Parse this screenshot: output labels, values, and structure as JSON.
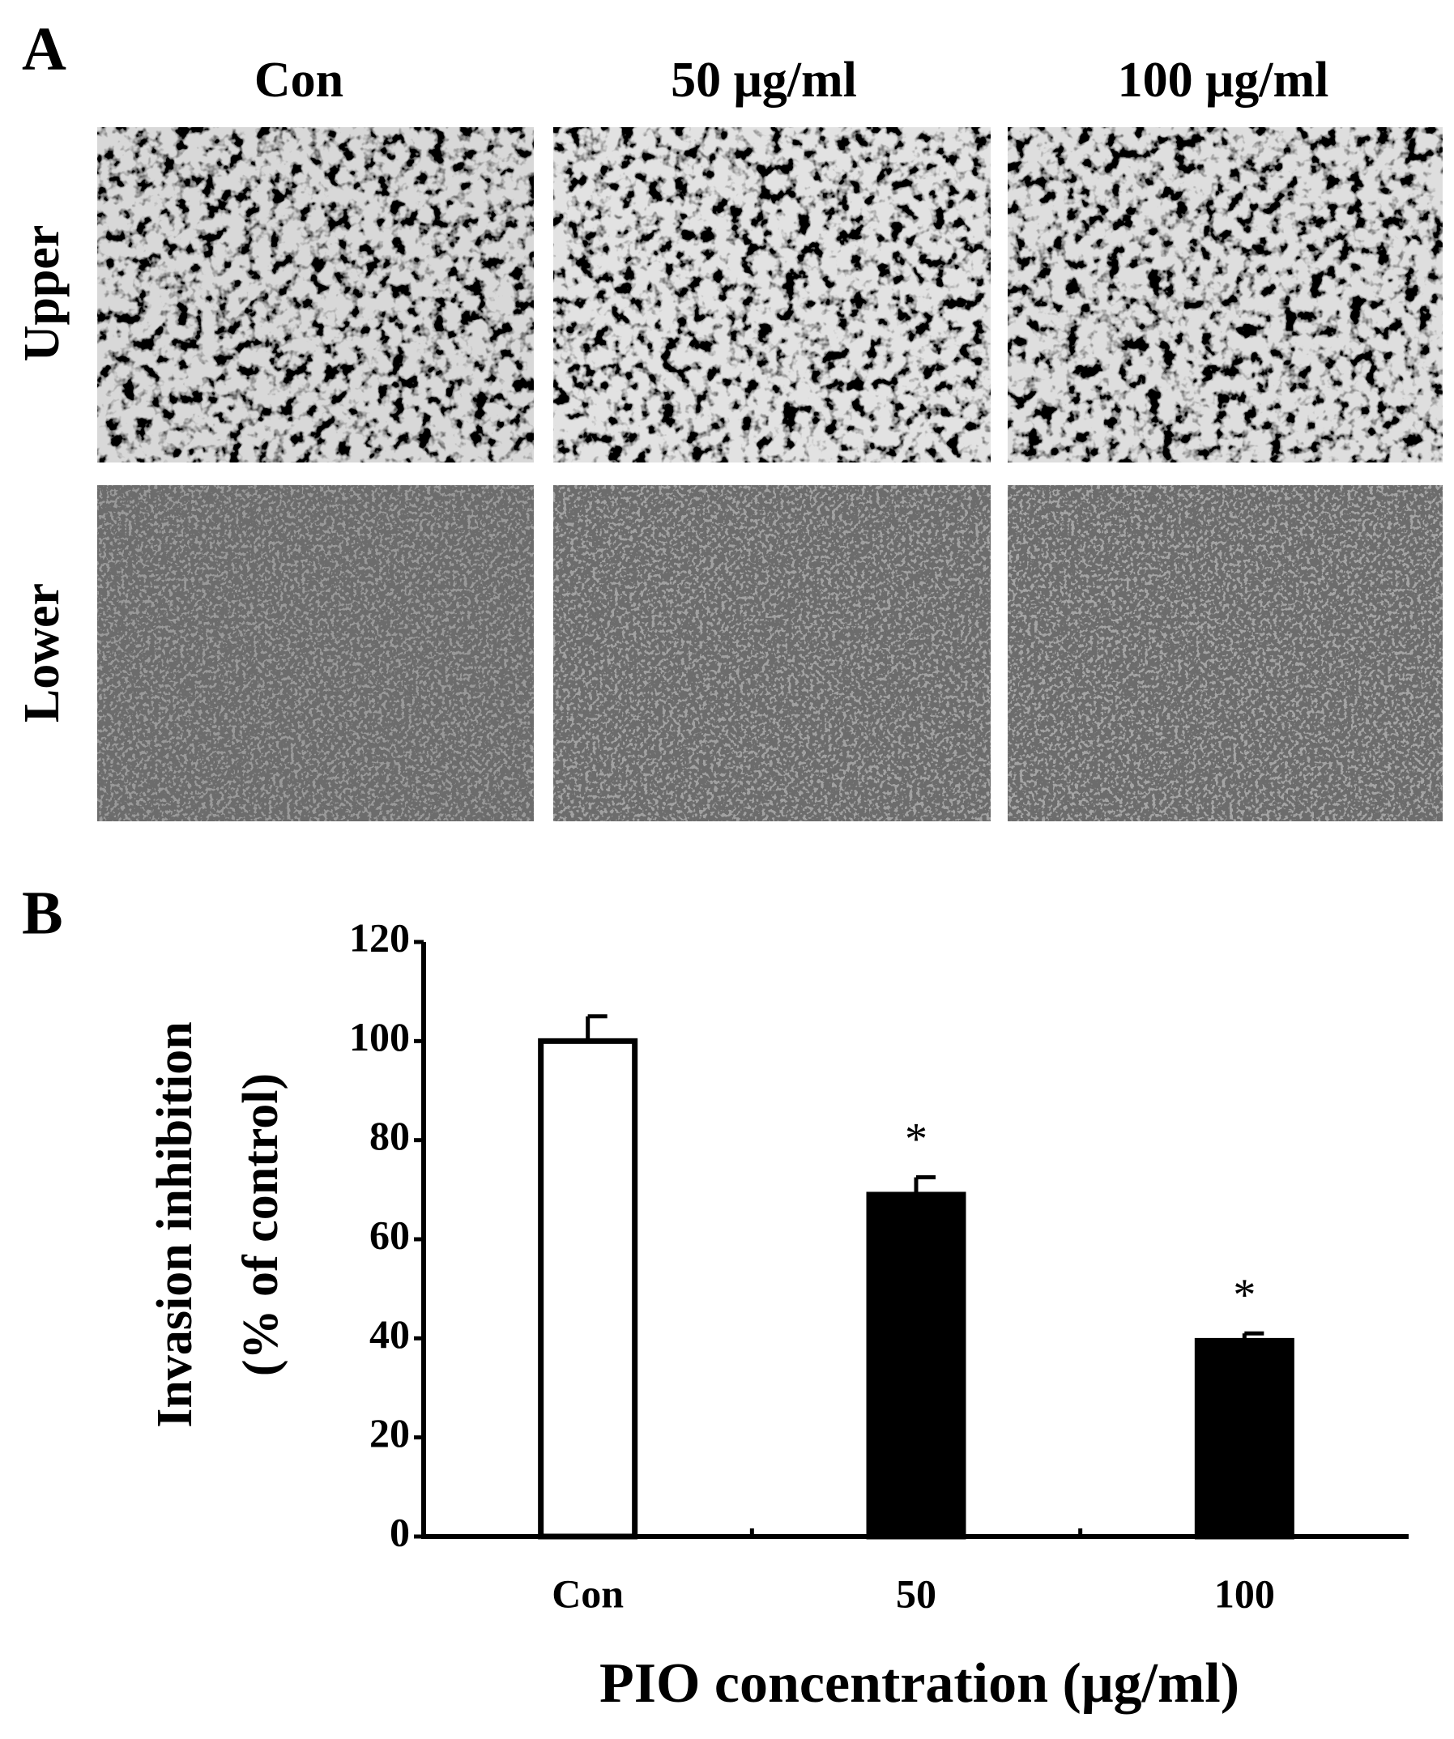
{
  "panel_a": {
    "label": "A",
    "columns": [
      "Con",
      "50 μg/ml",
      "100 μg/ml"
    ],
    "rows": [
      "Upper",
      "Lower"
    ]
  },
  "chart_data": {
    "type": "bar",
    "panel_label": "B",
    "categories": [
      "Con",
      "50",
      "100"
    ],
    "values": [
      100,
      69,
      39.5
    ],
    "errors": [
      5,
      3.5,
      1.5
    ],
    "colors": [
      "#ffffff",
      "#000000",
      "#000000"
    ],
    "annotations": [
      {
        "text": "*",
        "category": "50"
      },
      {
        "text": "*",
        "category": "100"
      }
    ],
    "ylabel": [
      "Invasion inhibition",
      "(% of control)"
    ],
    "xlabel": "PIO concentration (μg/ml)",
    "ylim": [
      0,
      120
    ],
    "yticks": [
      0,
      20,
      40,
      60,
      80,
      100,
      120
    ],
    "grid": false
  }
}
